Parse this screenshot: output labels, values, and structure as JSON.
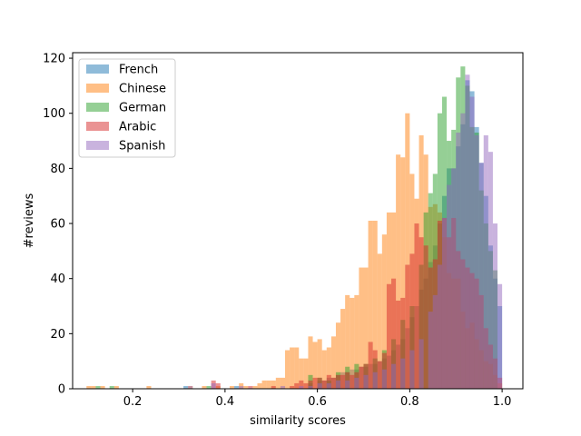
{
  "chart_data": {
    "type": "histogram",
    "xlabel": "similarity scores",
    "ylabel": "#reviews",
    "xlim": [
      0.07,
      1.045
    ],
    "ylim": [
      0,
      122
    ],
    "grid": false,
    "legend_position": "top-left",
    "xticks": [
      "0.2",
      "0.4",
      "0.6",
      "0.8",
      "1.0"
    ],
    "yticks": [
      "0",
      "20",
      "40",
      "60",
      "80",
      "100",
      "120"
    ],
    "bin_width": 0.01,
    "series": [
      {
        "name": "French",
        "color": "#1f77b4",
        "bins": [
          [
            0.31,
            1
          ],
          [
            0.42,
            1
          ],
          [
            0.58,
            2
          ],
          [
            0.6,
            3
          ],
          [
            0.61,
            3
          ],
          [
            0.62,
            4
          ],
          [
            0.63,
            4
          ],
          [
            0.64,
            5
          ],
          [
            0.65,
            6
          ],
          [
            0.66,
            6
          ],
          [
            0.67,
            7
          ],
          [
            0.68,
            7
          ],
          [
            0.69,
            8
          ],
          [
            0.7,
            8
          ],
          [
            0.71,
            9
          ],
          [
            0.72,
            9
          ],
          [
            0.73,
            10
          ],
          [
            0.74,
            11
          ],
          [
            0.75,
            12
          ],
          [
            0.76,
            14
          ],
          [
            0.77,
            16
          ],
          [
            0.78,
            18
          ],
          [
            0.79,
            22
          ],
          [
            0.8,
            26
          ],
          [
            0.81,
            30
          ],
          [
            0.82,
            36
          ],
          [
            0.83,
            40
          ],
          [
            0.84,
            46
          ],
          [
            0.85,
            52
          ],
          [
            0.86,
            60
          ],
          [
            0.87,
            70
          ],
          [
            0.88,
            80
          ],
          [
            0.89,
            80
          ],
          [
            0.9,
            88
          ],
          [
            0.91,
            96
          ],
          [
            0.92,
            112
          ],
          [
            0.93,
            108
          ],
          [
            0.94,
            95
          ],
          [
            0.95,
            82
          ],
          [
            0.96,
            70
          ],
          [
            0.97,
            52
          ],
          [
            0.98,
            40
          ],
          [
            0.99,
            30
          ]
        ]
      },
      {
        "name": "Chinese",
        "color": "#ff7f0e",
        "bins": [
          [
            0.1,
            1
          ],
          [
            0.11,
            1
          ],
          [
            0.13,
            1
          ],
          [
            0.16,
            1
          ],
          [
            0.23,
            1
          ],
          [
            0.32,
            1
          ],
          [
            0.35,
            1
          ],
          [
            0.38,
            1
          ],
          [
            0.41,
            1
          ],
          [
            0.43,
            2
          ],
          [
            0.44,
            1
          ],
          [
            0.46,
            1
          ],
          [
            0.47,
            2
          ],
          [
            0.48,
            3
          ],
          [
            0.49,
            3
          ],
          [
            0.5,
            3
          ],
          [
            0.51,
            4
          ],
          [
            0.52,
            4
          ],
          [
            0.53,
            14
          ],
          [
            0.54,
            15
          ],
          [
            0.55,
            15
          ],
          [
            0.56,
            11
          ],
          [
            0.57,
            11
          ],
          [
            0.58,
            19
          ],
          [
            0.59,
            17
          ],
          [
            0.6,
            18
          ],
          [
            0.61,
            14
          ],
          [
            0.62,
            15
          ],
          [
            0.63,
            19
          ],
          [
            0.64,
            24
          ],
          [
            0.65,
            29
          ],
          [
            0.66,
            34
          ],
          [
            0.67,
            33
          ],
          [
            0.68,
            34
          ],
          [
            0.69,
            44
          ],
          [
            0.7,
            44
          ],
          [
            0.71,
            61
          ],
          [
            0.72,
            61
          ],
          [
            0.73,
            49
          ],
          [
            0.74,
            56
          ],
          [
            0.75,
            64
          ],
          [
            0.76,
            64
          ],
          [
            0.77,
            85
          ],
          [
            0.78,
            84
          ],
          [
            0.79,
            100
          ],
          [
            0.8,
            78
          ],
          [
            0.81,
            69
          ],
          [
            0.82,
            92
          ],
          [
            0.83,
            85
          ],
          [
            0.84,
            66
          ],
          [
            0.85,
            67
          ],
          [
            0.86,
            64
          ],
          [
            0.87,
            55
          ],
          [
            0.88,
            42
          ],
          [
            0.89,
            40
          ],
          [
            0.9,
            40
          ],
          [
            0.91,
            28
          ],
          [
            0.92,
            22
          ],
          [
            0.93,
            24
          ],
          [
            0.94,
            18
          ],
          [
            0.95,
            14
          ],
          [
            0.96,
            10
          ],
          [
            0.97,
            9
          ],
          [
            0.98,
            5
          ],
          [
            0.99,
            2
          ]
        ]
      },
      {
        "name": "German",
        "color": "#2ca02c",
        "bins": [
          [
            0.12,
            1
          ],
          [
            0.15,
            1
          ],
          [
            0.36,
            1
          ],
          [
            0.58,
            5
          ],
          [
            0.6,
            4
          ],
          [
            0.62,
            3
          ],
          [
            0.64,
            6
          ],
          [
            0.66,
            8
          ],
          [
            0.68,
            9
          ],
          [
            0.7,
            9
          ],
          [
            0.72,
            11
          ],
          [
            0.74,
            14
          ],
          [
            0.76,
            18
          ],
          [
            0.78,
            25
          ],
          [
            0.8,
            30
          ],
          [
            0.82,
            45
          ],
          [
            0.83,
            64
          ],
          [
            0.84,
            71
          ],
          [
            0.85,
            78
          ],
          [
            0.86,
            100
          ],
          [
            0.87,
            106
          ],
          [
            0.88,
            90
          ],
          [
            0.89,
            94
          ],
          [
            0.9,
            113
          ],
          [
            0.91,
            117
          ],
          [
            0.92,
            110
          ],
          [
            0.93,
            95
          ],
          [
            0.94,
            93
          ],
          [
            0.95,
            72
          ],
          [
            0.96,
            60
          ],
          [
            0.97,
            50
          ],
          [
            0.98,
            43
          ]
        ]
      },
      {
        "name": "Arabic",
        "color": "#d62728",
        "bins": [
          [
            0.37,
            3
          ],
          [
            0.38,
            2
          ],
          [
            0.45,
            1
          ],
          [
            0.5,
            1
          ],
          [
            0.54,
            1
          ],
          [
            0.55,
            2
          ],
          [
            0.56,
            3
          ],
          [
            0.57,
            2
          ],
          [
            0.58,
            3
          ],
          [
            0.59,
            4
          ],
          [
            0.6,
            4
          ],
          [
            0.61,
            3
          ],
          [
            0.62,
            5
          ],
          [
            0.63,
            4
          ],
          [
            0.64,
            5
          ],
          [
            0.65,
            5
          ],
          [
            0.66,
            6
          ],
          [
            0.67,
            5
          ],
          [
            0.68,
            6
          ],
          [
            0.69,
            8
          ],
          [
            0.7,
            9
          ],
          [
            0.71,
            17
          ],
          [
            0.72,
            14
          ],
          [
            0.73,
            10
          ],
          [
            0.74,
            13
          ],
          [
            0.75,
            38
          ],
          [
            0.76,
            40
          ],
          [
            0.77,
            32
          ],
          [
            0.78,
            33
          ],
          [
            0.79,
            45
          ],
          [
            0.8,
            49
          ],
          [
            0.81,
            60
          ],
          [
            0.82,
            55
          ],
          [
            0.83,
            52
          ],
          [
            0.84,
            44
          ],
          [
            0.85,
            47
          ],
          [
            0.86,
            61
          ],
          [
            0.87,
            62
          ],
          [
            0.88,
            55
          ],
          [
            0.89,
            62
          ],
          [
            0.9,
            50
          ],
          [
            0.91,
            47
          ],
          [
            0.92,
            44
          ],
          [
            0.93,
            42
          ],
          [
            0.94,
            40
          ],
          [
            0.95,
            34
          ],
          [
            0.96,
            22
          ],
          [
            0.97,
            16
          ],
          [
            0.98,
            11
          ],
          [
            0.99,
            4
          ]
        ]
      },
      {
        "name": "Spanish",
        "color": "#9467bd",
        "bins": [
          [
            0.32,
            1
          ],
          [
            0.37,
            2
          ],
          [
            0.43,
            1
          ],
          [
            0.52,
            1
          ],
          [
            0.56,
            1
          ],
          [
            0.58,
            1
          ],
          [
            0.6,
            2
          ],
          [
            0.62,
            2
          ],
          [
            0.64,
            3
          ],
          [
            0.66,
            3
          ],
          [
            0.68,
            4
          ],
          [
            0.7,
            5
          ],
          [
            0.72,
            6
          ],
          [
            0.74,
            7
          ],
          [
            0.76,
            9
          ],
          [
            0.78,
            11
          ],
          [
            0.8,
            14
          ],
          [
            0.82,
            18
          ],
          [
            0.84,
            28
          ],
          [
            0.85,
            34
          ],
          [
            0.86,
            45
          ],
          [
            0.87,
            62
          ],
          [
            0.88,
            74
          ],
          [
            0.89,
            80
          ],
          [
            0.9,
            93
          ],
          [
            0.91,
            100
          ],
          [
            0.92,
            114
          ],
          [
            0.93,
            106
          ],
          [
            0.94,
            92
          ],
          [
            0.95,
            82
          ],
          [
            0.96,
            92
          ],
          [
            0.97,
            86
          ],
          [
            0.98,
            60
          ],
          [
            0.99,
            38
          ]
        ]
      }
    ]
  }
}
